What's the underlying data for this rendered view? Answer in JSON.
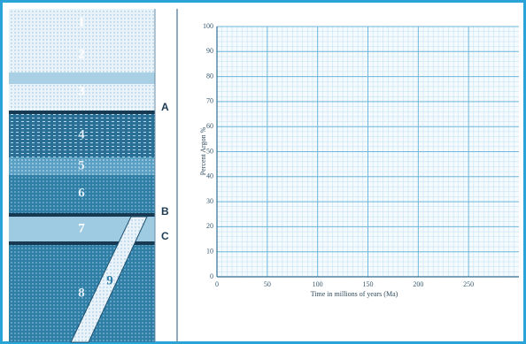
{
  "strata": {
    "layers": [
      "1",
      "2",
      "3",
      "4",
      "5",
      "6",
      "7",
      "8",
      "9"
    ],
    "markers": [
      "A",
      "B",
      "C"
    ]
  },
  "graph": {
    "y_label": "Percent Argon %",
    "x_label": "Time in millions of years (Ma)",
    "xlim": [
      0,
      300
    ],
    "ylim": [
      0,
      100
    ],
    "xticks": [
      0,
      50,
      100,
      150,
      200,
      250
    ],
    "yticks": [
      0,
      10,
      20,
      30,
      40,
      50,
      60,
      70,
      80,
      90,
      100
    ]
  }
}
